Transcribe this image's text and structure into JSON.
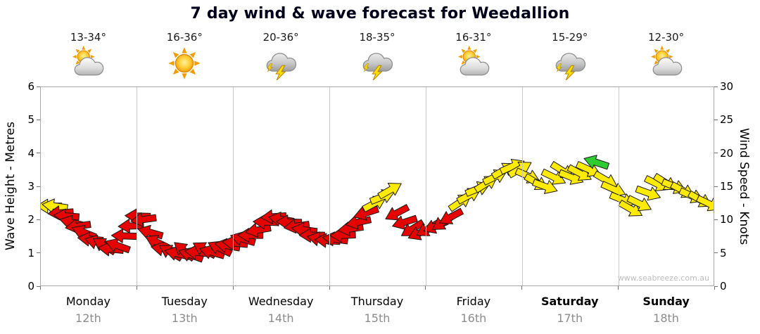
{
  "title": "7 day wind & wave forecast for Weedallion",
  "watermark": "www.seabreeze.com.au",
  "axes": {
    "left_label": "Wave Height - Metres",
    "right_label": "Wind Speed - Knots",
    "left_ticks": [
      "0",
      "1",
      "2",
      "3",
      "4",
      "5",
      "6"
    ],
    "right_ticks": [
      "0",
      "5",
      "10",
      "15",
      "20",
      "25",
      "30"
    ]
  },
  "days": [
    {
      "name": "Monday",
      "date": "12th",
      "temp": "13-34°",
      "icon": "sun-cloud",
      "bold": false
    },
    {
      "name": "Tuesday",
      "date": "13th",
      "temp": "16-36°",
      "icon": "sunny",
      "bold": false
    },
    {
      "name": "Wednesday",
      "date": "14th",
      "temp": "20-36°",
      "icon": "storm",
      "bold": false
    },
    {
      "name": "Thursday",
      "date": "15th",
      "temp": "18-35°",
      "icon": "storm",
      "bold": false
    },
    {
      "name": "Friday",
      "date": "16th",
      "temp": "16-31°",
      "icon": "sun-cloud",
      "bold": false
    },
    {
      "name": "Saturday",
      "date": "17th",
      "temp": "15-29°",
      "icon": "storm",
      "bold": true
    },
    {
      "name": "Sunday",
      "date": "18th",
      "temp": "12-30°",
      "icon": "sun-cloud",
      "bold": true
    }
  ],
  "chart_data": {
    "type": "scatter",
    "title": "7 day wind & wave forecast for Weedallion",
    "x_axis": {
      "label": "day",
      "categories": [
        "Monday 12th",
        "Tuesday 13th",
        "Wednesday 14th",
        "Thursday 15th",
        "Friday 16th",
        "Saturday 17th",
        "Sunday 18th"
      ],
      "range_days": [
        0,
        7
      ],
      "grid": "vertical lines at day boundaries"
    },
    "y_left": {
      "label": "Wave Height - Metres",
      "range": [
        0,
        6
      ]
    },
    "y_right": {
      "label": "Wind Speed - Knots",
      "range": [
        0,
        30
      ]
    },
    "marker": "wind-direction-arrow",
    "colors": {
      "R": "#e60000",
      "Y": "#ffeb00",
      "G": "#2ecc2e"
    },
    "arrow_format": "[time_in_days_from_Monday, wind_speed_knots, arrow_rotation_deg, color_key]",
    "arrows": [
      [
        0.1,
        12,
        180,
        "Y"
      ],
      [
        0.16,
        12,
        188,
        "Y"
      ],
      [
        0.22,
        11,
        176,
        "R"
      ],
      [
        0.28,
        10.5,
        184,
        "R"
      ],
      [
        0.34,
        9.5,
        194,
        "R"
      ],
      [
        0.4,
        9,
        172,
        "R"
      ],
      [
        0.46,
        8,
        202,
        "R"
      ],
      [
        0.53,
        7,
        186,
        "R"
      ],
      [
        0.6,
        6.5,
        196,
        "R"
      ],
      [
        0.67,
        6,
        212,
        "R"
      ],
      [
        0.74,
        5.5,
        186,
        "R"
      ],
      [
        0.81,
        6,
        200,
        "R"
      ],
      [
        0.88,
        7.5,
        182,
        "R"
      ],
      [
        0.95,
        9,
        178,
        "R"
      ],
      [
        1.02,
        10.5,
        182,
        "R"
      ],
      [
        1.08,
        10,
        172,
        "R"
      ],
      [
        1.15,
        8,
        196,
        "R"
      ],
      [
        1.22,
        6.5,
        206,
        "R"
      ],
      [
        1.29,
        5.5,
        190,
        "R"
      ],
      [
        1.36,
        5,
        210,
        "R"
      ],
      [
        1.43,
        4.8,
        194,
        "R"
      ],
      [
        1.5,
        5.2,
        220,
        "R"
      ],
      [
        1.57,
        4.6,
        200,
        "R"
      ],
      [
        1.64,
        5,
        186,
        "R"
      ],
      [
        1.71,
        5.4,
        210,
        "R"
      ],
      [
        1.79,
        5,
        196,
        "R"
      ],
      [
        1.87,
        5.6,
        206,
        "R"
      ],
      [
        1.95,
        6,
        190,
        "R"
      ],
      [
        2.03,
        6.4,
        186,
        "R"
      ],
      [
        2.11,
        7,
        196,
        "R"
      ],
      [
        2.19,
        7.6,
        180,
        "R"
      ],
      [
        2.27,
        8.4,
        170,
        "R"
      ],
      [
        2.35,
        9.6,
        182,
        "R"
      ],
      [
        2.43,
        10.4,
        176,
        "R"
      ],
      [
        2.51,
        10,
        190,
        "R"
      ],
      [
        2.59,
        9.6,
        182,
        "R"
      ],
      [
        2.67,
        9,
        172,
        "R"
      ],
      [
        2.75,
        8.4,
        188,
        "R"
      ],
      [
        2.83,
        7.6,
        180,
        "R"
      ],
      [
        2.91,
        7,
        192,
        "R"
      ],
      [
        2.99,
        6.8,
        184,
        "R"
      ],
      [
        3.07,
        7,
        188,
        "R"
      ],
      [
        3.15,
        7.6,
        178,
        "R"
      ],
      [
        3.23,
        8.6,
        172,
        "R"
      ],
      [
        3.31,
        9.6,
        168,
        "R"
      ],
      [
        3.39,
        11,
        162,
        "R"
      ],
      [
        3.47,
        12.4,
        -28,
        "Y"
      ],
      [
        3.55,
        13.4,
        -22,
        "Y"
      ],
      [
        3.63,
        14.4,
        -30,
        "Y"
      ],
      [
        3.71,
        11,
        152,
        "R"
      ],
      [
        3.79,
        9.6,
        162,
        "R"
      ],
      [
        3.87,
        8.6,
        148,
        "R"
      ],
      [
        3.95,
        8,
        156,
        "R"
      ],
      [
        4.03,
        8.6,
        150,
        "R"
      ],
      [
        4.11,
        9,
        158,
        "R"
      ],
      [
        4.19,
        9.6,
        146,
        "R"
      ],
      [
        4.27,
        10.4,
        152,
        "R"
      ],
      [
        4.36,
        12.6,
        -34,
        "Y"
      ],
      [
        4.45,
        13.6,
        -28,
        "Y"
      ],
      [
        4.54,
        14.6,
        -22,
        "Y"
      ],
      [
        4.63,
        15.4,
        -32,
        "Y"
      ],
      [
        4.72,
        16.4,
        -26,
        "Y"
      ],
      [
        4.81,
        17.4,
        -30,
        "Y"
      ],
      [
        4.9,
        18,
        -24,
        "Y"
      ],
      [
        4.98,
        17.6,
        -30,
        "Y"
      ],
      [
        5.06,
        16.6,
        24,
        "Y"
      ],
      [
        5.15,
        15.6,
        30,
        "Y"
      ],
      [
        5.24,
        15,
        20,
        "Y"
      ],
      [
        5.33,
        16.4,
        26,
        "Y"
      ],
      [
        5.42,
        17.4,
        32,
        "Y"
      ],
      [
        5.51,
        16.4,
        22,
        "Y"
      ],
      [
        5.6,
        17,
        28,
        "Y"
      ],
      [
        5.69,
        17.6,
        24,
        "Y"
      ],
      [
        5.78,
        18.6,
        198,
        "G"
      ],
      [
        5.87,
        16,
        30,
        "Y"
      ],
      [
        5.95,
        14.6,
        24,
        "Y"
      ],
      [
        6.04,
        13,
        22,
        "Y"
      ],
      [
        6.13,
        11.6,
        30,
        "Y"
      ],
      [
        6.22,
        12.4,
        26,
        "Y"
      ],
      [
        6.31,
        14,
        20,
        "Y"
      ],
      [
        6.4,
        15.4,
        26,
        "Y"
      ],
      [
        6.49,
        15.6,
        32,
        "Y"
      ],
      [
        6.58,
        15,
        22,
        "Y"
      ],
      [
        6.67,
        14.4,
        28,
        "Y"
      ],
      [
        6.76,
        13.6,
        24,
        "Y"
      ],
      [
        6.85,
        13,
        30,
        "Y"
      ],
      [
        6.94,
        12.4,
        26,
        "Y"
      ]
    ]
  }
}
